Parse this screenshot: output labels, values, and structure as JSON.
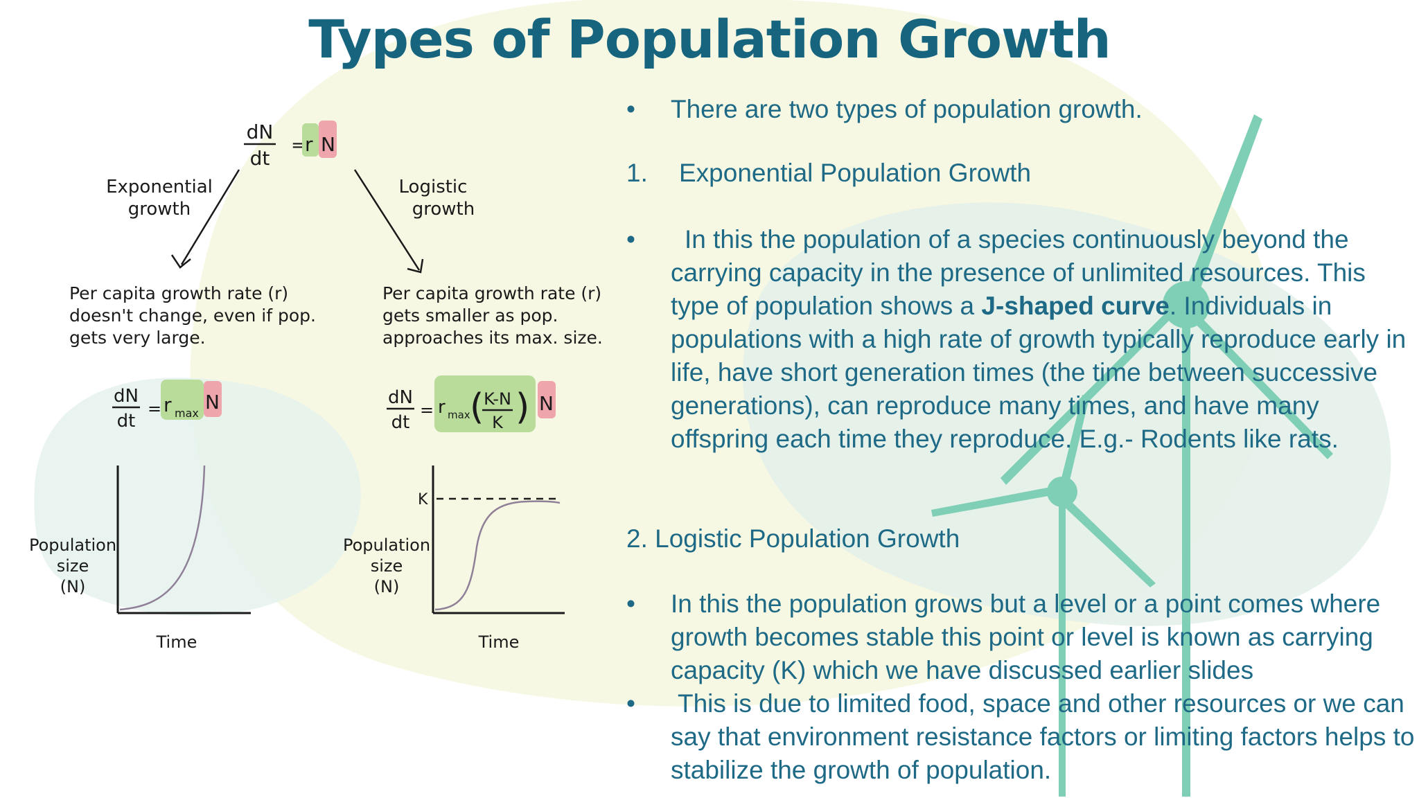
{
  "title": "Types of Population Growth",
  "figure": {
    "top_equation": {
      "lhs_num": "dN",
      "lhs_den": "dt",
      "rhs": "r",
      "n": "N"
    },
    "branches": [
      {
        "label_line1": "Exponential",
        "label_line2": "growth",
        "desc_line1": "Per capita growth rate (r)",
        "desc_line2": "doesn't change, even if pop.",
        "desc_line3": "gets very large.",
        "eq_num": "dN",
        "eq_den": "dt",
        "eq_r": "r",
        "eq_sub": "max",
        "eq_n": "N",
        "y_label_line1": "Population",
        "y_label_line2": "size",
        "y_label_line3": "(N)",
        "x_label": "Time"
      },
      {
        "label_line1": "Logistic",
        "label_line2": "growth",
        "desc_line1": "Per capita growth rate (r)",
        "desc_line2": "gets smaller as pop.",
        "desc_line3": "approaches its max. size.",
        "eq_num": "dN",
        "eq_den": "dt",
        "eq_r": "r",
        "eq_sub": "max",
        "eq_frac_num": "K-N",
        "eq_frac_den": "K",
        "eq_n": "N",
        "k_label": "K",
        "y_label_line1": "Population",
        "y_label_line2": "size",
        "y_label_line3": "(N)",
        "x_label": "Time"
      }
    ]
  },
  "content": {
    "bullet_char": "•",
    "intro": "There are two types of population growth.",
    "heading1_num": "1.",
    "heading1": "Exponential Population Growth",
    "para1_before": "In this the population of a species continuously beyond the carrying capacity in the presence of unlimited resources. This type of population shows a ",
    "para1_bold": "J-shaped curve",
    "para1_after": ". Individuals in populations with a high rate of growth typically reproduce early in life, have short generation times (the time between successive generations), can reproduce many times, and have many offspring each time they reproduce. E.g.- Rodents like rats.",
    "heading2": "2. Logistic Population Growth",
    "para2": "In this the population grows but a level or a point comes where growth becomes stable this point or level is known as carrying capacity (K) which we have discussed earlier slides",
    "para3": "This is due to limited food, space and other resources or we can say that environment resistance factors or limiting factors helps to stabilize the growth of population."
  },
  "colors": {
    "title": "#17647f",
    "text": "#1e6a86",
    "turbine": "#7fcfb6",
    "highlight_green": "#b9dc9a",
    "highlight_red": "#eea5ab"
  }
}
